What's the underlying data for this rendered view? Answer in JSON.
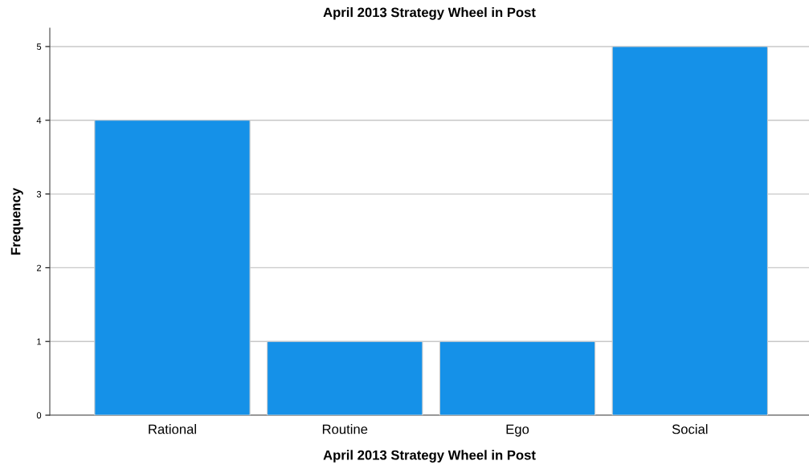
{
  "chart_data": {
    "type": "bar",
    "title": "April 2013 Strategy Wheel in Post",
    "xlabel": "April 2013 Strategy Wheel in Post",
    "ylabel": "Frequency",
    "categories": [
      "Rational",
      "Routine",
      "Ego",
      "Social"
    ],
    "values": [
      4,
      1,
      1,
      5
    ],
    "color": "#1591e8",
    "ylim": [
      0,
      5.25
    ],
    "yticks": [
      0,
      1,
      2,
      3,
      4,
      5
    ],
    "grid": "y"
  }
}
